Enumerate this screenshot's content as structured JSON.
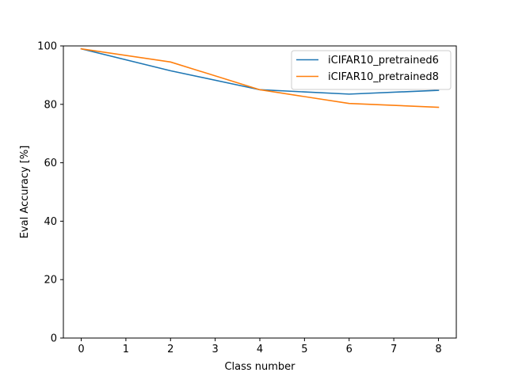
{
  "chart_data": {
    "type": "line",
    "title": "",
    "xlabel": "Class number",
    "ylabel": "Eval Accuracy [%]",
    "xlim": [
      -0.4,
      8.4
    ],
    "ylim": [
      0,
      100
    ],
    "x_ticks": [
      "0",
      "1",
      "2",
      "3",
      "4",
      "5",
      "6",
      "7",
      "8"
    ],
    "y_ticks": [
      "0",
      "20",
      "40",
      "60",
      "80",
      "100"
    ],
    "x": [
      0,
      2,
      4,
      6,
      8
    ],
    "grid": false,
    "legend_position": "top-right",
    "series": [
      {
        "name": "iCIFAR10_pretrained6",
        "color": "#1f77b4",
        "values": [
          99.0,
          91.5,
          85.0,
          83.5,
          84.8
        ]
      },
      {
        "name": "iCIFAR10_pretrained8",
        "color": "#ff7f0e",
        "values": [
          99.0,
          94.5,
          85.0,
          80.3,
          79.0
        ]
      }
    ]
  }
}
